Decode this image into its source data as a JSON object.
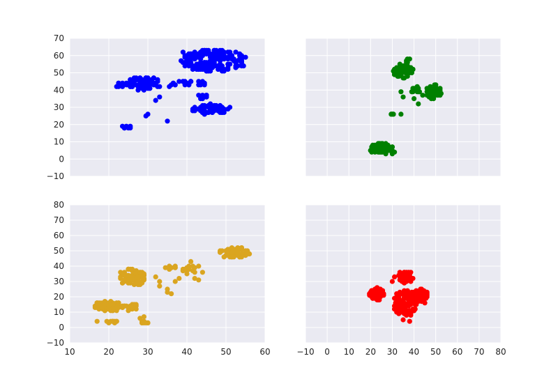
{
  "chart_data": [
    {
      "type": "scatter",
      "panel": "top-left",
      "color": "#0000ff",
      "xlim": [
        10,
        60
      ],
      "ylim": [
        -10,
        70
      ],
      "xticks": [
        10,
        20,
        30,
        40,
        50,
        60
      ],
      "yticks": [
        -10,
        0,
        10,
        20,
        30,
        40,
        50,
        60,
        70
      ],
      "xtick_labels_visible": false,
      "ytick_labels_visible": true,
      "grid": true,
      "clusters": [
        {
          "cx": 47,
          "cy": 57,
          "rx": 8.5,
          "ry": 6.5,
          "n": 160
        },
        {
          "cx": 42,
          "cy": 61,
          "rx": 3.5,
          "ry": 1.5,
          "n": 18
        },
        {
          "cx": 29,
          "cy": 44,
          "rx": 4.5,
          "ry": 4.0,
          "n": 80
        },
        {
          "cx": 23,
          "cy": 43,
          "rx": 1.5,
          "ry": 1.2,
          "n": 10
        },
        {
          "cx": 40,
          "cy": 44,
          "rx": 6.0,
          "ry": 1.5,
          "n": 20
        },
        {
          "cx": 46,
          "cy": 29,
          "rx": 4.5,
          "ry": 3.0,
          "n": 55
        },
        {
          "cx": 44,
          "cy": 37,
          "rx": 1.3,
          "ry": 2.5,
          "n": 8
        },
        {
          "cx": 24.5,
          "cy": 18,
          "rx": 1.5,
          "ry": 1.0,
          "n": 8
        }
      ],
      "points": [
        [
          29.5,
          25
        ],
        [
          30,
          26
        ],
        [
          32,
          34
        ],
        [
          33,
          36
        ],
        [
          35,
          22
        ],
        [
          51,
          30
        ],
        [
          38,
          45
        ],
        [
          36,
          43
        ],
        [
          35.5,
          42
        ]
      ]
    },
    {
      "type": "scatter",
      "panel": "top-right",
      "color": "#008000",
      "xlim": [
        -10,
        80
      ],
      "ylim": [
        -10,
        70
      ],
      "xticks": [
        -10,
        0,
        10,
        20,
        30,
        40,
        50,
        60,
        70,
        80
      ],
      "yticks": [
        -10,
        0,
        10,
        20,
        30,
        40,
        50,
        60,
        70
      ],
      "xtick_labels_visible": false,
      "ytick_labels_visible": false,
      "grid": true,
      "clusters": [
        {
          "cx": 35,
          "cy": 51,
          "rx": 5.0,
          "ry": 4.0,
          "n": 80
        },
        {
          "cx": 37,
          "cy": 57,
          "rx": 1.2,
          "ry": 1.2,
          "n": 6
        },
        {
          "cx": 49,
          "cy": 39,
          "rx": 3.5,
          "ry": 4.0,
          "n": 50
        },
        {
          "cx": 41,
          "cy": 40,
          "rx": 2.5,
          "ry": 2.0,
          "n": 14
        },
        {
          "cx": 25,
          "cy": 6,
          "rx": 5.5,
          "ry": 3.0,
          "n": 80
        },
        {
          "cx": 30,
          "cy": 26,
          "rx": 0.8,
          "ry": 0.8,
          "n": 6
        }
      ],
      "points": [
        [
          34,
          39
        ],
        [
          35,
          36
        ],
        [
          40,
          35
        ],
        [
          42,
          32
        ],
        [
          44,
          37
        ],
        [
          34,
          26
        ],
        [
          31,
          4
        ],
        [
          30,
          3
        ]
      ]
    },
    {
      "type": "scatter",
      "panel": "bottom-left",
      "color": "#daa520",
      "xlim": [
        10,
        60
      ],
      "ylim": [
        -10,
        80
      ],
      "xticks": [
        10,
        20,
        30,
        40,
        50,
        60
      ],
      "yticks": [
        -10,
        0,
        10,
        20,
        30,
        40,
        50,
        60,
        70,
        80
      ],
      "xtick_labels_visible": true,
      "ytick_labels_visible": true,
      "grid": true,
      "clusters": [
        {
          "cx": 26,
          "cy": 33,
          "rx": 3.5,
          "ry": 5.5,
          "n": 90
        },
        {
          "cx": 20,
          "cy": 14,
          "rx": 4.5,
          "ry": 3.0,
          "n": 90
        },
        {
          "cx": 26,
          "cy": 13,
          "rx": 1.5,
          "ry": 2.5,
          "n": 18
        },
        {
          "cx": 52,
          "cy": 49,
          "rx": 4.0,
          "ry": 3.5,
          "n": 60
        },
        {
          "cx": 36,
          "cy": 39,
          "rx": 1.8,
          "ry": 1.2,
          "n": 10
        },
        {
          "cx": 40.5,
          "cy": 38,
          "rx": 1.8,
          "ry": 3.0,
          "n": 16
        },
        {
          "cx": 21,
          "cy": 3.5,
          "rx": 1.5,
          "ry": 1.0,
          "n": 10
        },
        {
          "cx": 29,
          "cy": 3,
          "rx": 1.2,
          "ry": 1.0,
          "n": 8
        }
      ],
      "points": [
        [
          35,
          23
        ],
        [
          36,
          22
        ],
        [
          32,
          33
        ],
        [
          33,
          27
        ],
        [
          33,
          30
        ],
        [
          35,
          25
        ],
        [
          37,
          30
        ],
        [
          38,
          32
        ],
        [
          43,
          31
        ],
        [
          42,
          32
        ],
        [
          41,
          43
        ],
        [
          43,
          40
        ],
        [
          44,
          36
        ],
        [
          28,
          6
        ],
        [
          29,
          7
        ],
        [
          17,
          4
        ]
      ]
    },
    {
      "type": "scatter",
      "panel": "bottom-right",
      "color": "#ff0000",
      "xlim": [
        -10,
        80
      ],
      "ylim": [
        -10,
        80
      ],
      "xticks": [
        -10,
        0,
        10,
        20,
        30,
        40,
        50,
        60,
        70,
        80
      ],
      "yticks": [
        -10,
        0,
        10,
        20,
        30,
        40,
        50,
        60,
        70,
        80
      ],
      "xtick_labels_visible": true,
      "ytick_labels_visible": false,
      "grid": true,
      "clusters": [
        {
          "cx": 36,
          "cy": 16,
          "rx": 5.5,
          "ry": 9.0,
          "n": 120
        },
        {
          "cx": 23,
          "cy": 22,
          "rx": 3.5,
          "ry": 4.0,
          "n": 50
        },
        {
          "cx": 42,
          "cy": 21,
          "rx": 4.5,
          "ry": 4.0,
          "n": 50
        },
        {
          "cx": 36,
          "cy": 33,
          "rx": 3.5,
          "ry": 4.0,
          "n": 40
        }
      ],
      "points": [
        [
          30,
          30
        ],
        [
          31,
          33
        ],
        [
          45,
          16
        ],
        [
          35,
          5
        ],
        [
          38,
          4
        ]
      ]
    }
  ]
}
